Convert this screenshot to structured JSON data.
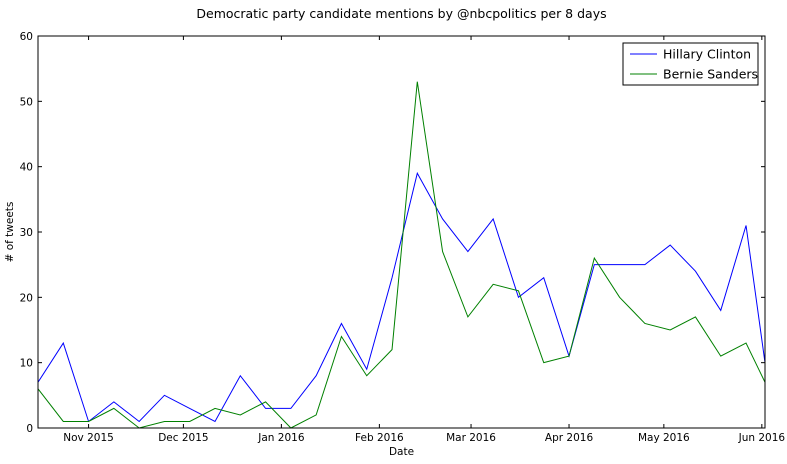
{
  "chart_data": {
    "type": "line",
    "title": "Democratic party candidate mentions by @nbcpolitics per 8 days",
    "xlabel": "Date",
    "ylabel": "# of tweets",
    "ylim": [
      0,
      60
    ],
    "yticks": [
      0,
      10,
      20,
      30,
      40,
      50,
      60
    ],
    "xlim": [
      "2015-10-16",
      "2016-06-02"
    ],
    "xticks": [
      {
        "date": "2015-11-01",
        "label": "Nov 2015"
      },
      {
        "date": "2015-12-01",
        "label": "Dec 2015"
      },
      {
        "date": "2016-01-01",
        "label": "Jan 2016"
      },
      {
        "date": "2016-02-01",
        "label": "Feb 2016"
      },
      {
        "date": "2016-03-01",
        "label": "Mar 2016"
      },
      {
        "date": "2016-04-01",
        "label": "Apr 2016"
      },
      {
        "date": "2016-05-01",
        "label": "May 2016"
      },
      {
        "date": "2016-06-01",
        "label": "Jun 2016"
      }
    ],
    "x": [
      "2015-10-16",
      "2015-10-24",
      "2015-11-01",
      "2015-11-09",
      "2015-11-17",
      "2015-11-25",
      "2015-12-03",
      "2015-12-11",
      "2015-12-19",
      "2015-12-27",
      "2016-01-04",
      "2016-01-12",
      "2016-01-20",
      "2016-01-28",
      "2016-02-05",
      "2016-02-13",
      "2016-02-21",
      "2016-02-29",
      "2016-03-08",
      "2016-03-16",
      "2016-03-24",
      "2016-04-01",
      "2016-04-09",
      "2016-04-17",
      "2016-04-25",
      "2016-05-03",
      "2016-05-11",
      "2016-05-19",
      "2016-05-27",
      "2016-06-02"
    ],
    "series": [
      {
        "name": "Hillary Clinton",
        "color": "#0000ff",
        "values": [
          7,
          13,
          1,
          4,
          1,
          5,
          3,
          1,
          8,
          3,
          3,
          8,
          16,
          9,
          23,
          39,
          32,
          27,
          32,
          20,
          23,
          11,
          25,
          25,
          25,
          28,
          24,
          18,
          31,
          10
        ]
      },
      {
        "name": "Bernie Sanders",
        "color": "#008000",
        "values": [
          6,
          1,
          1,
          3,
          0,
          1,
          1,
          3,
          2,
          4,
          0,
          2,
          14,
          8,
          12,
          53,
          27,
          17,
          22,
          21,
          10,
          11,
          26,
          20,
          16,
          15,
          17,
          11,
          13,
          7
        ]
      }
    ],
    "grid": false,
    "legend_position": "top-right"
  }
}
